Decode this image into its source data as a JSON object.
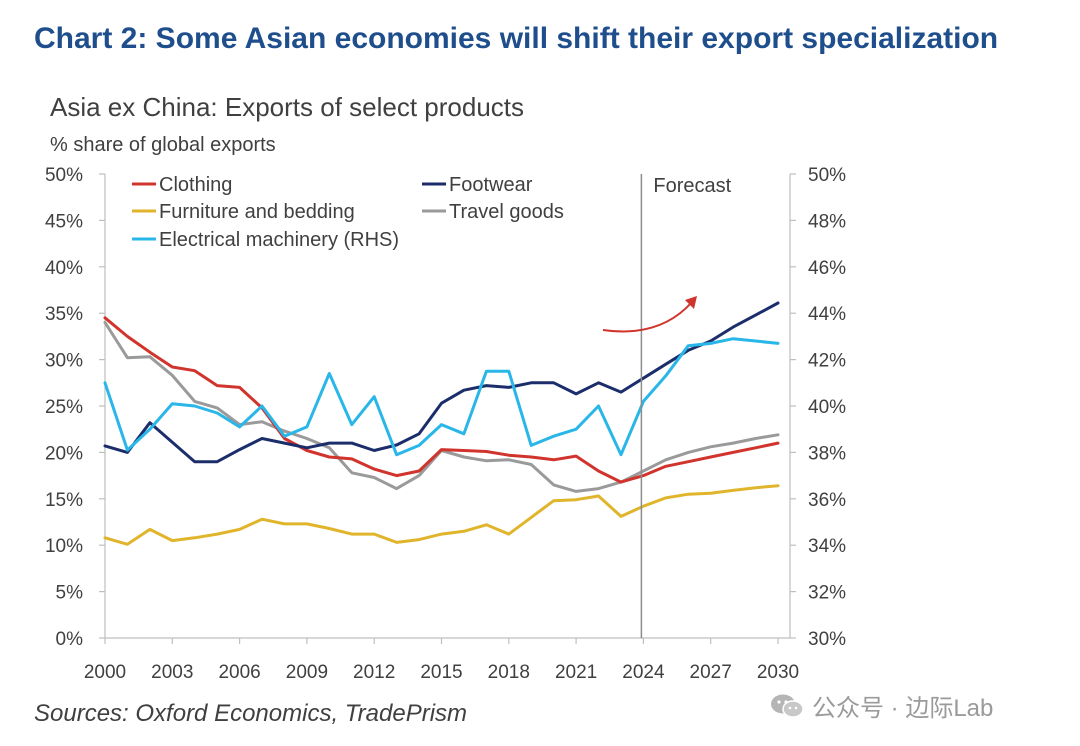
{
  "header": {
    "title": "Chart 2: Some Asian economies will shift their export specialization"
  },
  "footer": {
    "source": "Sources: Oxford Economics, TradePrism"
  },
  "watermark": {
    "text": "公众号 · 边际Lab"
  },
  "chart_data": {
    "type": "line",
    "title": "Asia ex China: Exports of select products",
    "ylabel": "% share of global exports",
    "annotation": "Forecast",
    "forecast_start": 2024,
    "x": [
      2000,
      2001,
      2002,
      2003,
      2004,
      2005,
      2006,
      2007,
      2008,
      2009,
      2010,
      2011,
      2012,
      2013,
      2014,
      2015,
      2016,
      2017,
      2018,
      2019,
      2020,
      2021,
      2022,
      2023,
      2024,
      2025,
      2026,
      2027,
      2028,
      2029,
      2030
    ],
    "xticks": [
      "2000",
      "2003",
      "2006",
      "2009",
      "2012",
      "2015",
      "2018",
      "2021",
      "2024",
      "2027",
      "2030"
    ],
    "xlim": [
      2000,
      2030
    ],
    "ylim": [
      0,
      50
    ],
    "yticks": [
      "0%",
      "5%",
      "10%",
      "15%",
      "20%",
      "25%",
      "30%",
      "35%",
      "40%",
      "45%",
      "50%"
    ],
    "y2lim": [
      30,
      50
    ],
    "y2ticks": [
      "30%",
      "32%",
      "34%",
      "36%",
      "38%",
      "40%",
      "42%",
      "44%",
      "46%",
      "48%",
      "50%"
    ],
    "legend_position": "top-left",
    "grid": false,
    "series": [
      {
        "name": "Clothing",
        "color": "#d0342c",
        "axis": "left",
        "values": [
          34.5,
          32.5,
          30.8,
          29.2,
          28.8,
          27.2,
          27.0,
          24.8,
          21.5,
          20.2,
          19.5,
          19.3,
          18.2,
          17.5,
          18.0,
          20.3,
          20.2,
          20.1,
          19.7,
          19.5,
          19.2,
          19.6,
          18.0,
          16.8,
          17.5,
          18.5,
          19.0,
          19.5,
          20.0,
          20.5,
          21.0
        ]
      },
      {
        "name": "Footwear",
        "color": "#1b2e6b",
        "axis": "left",
        "values": [
          20.7,
          20.0,
          23.2,
          21.1,
          19.0,
          19.0,
          20.3,
          21.5,
          21.0,
          20.5,
          21.0,
          21.0,
          20.2,
          20.8,
          22.0,
          25.3,
          26.7,
          27.2,
          27.0,
          27.5,
          27.5,
          26.3,
          27.5,
          26.5,
          28.0,
          29.5,
          31.0,
          32.0,
          33.5,
          34.8,
          36.1
        ]
      },
      {
        "name": "Furniture and bedding",
        "color": "#e0b52c",
        "axis": "left",
        "values": [
          10.8,
          10.1,
          11.7,
          10.5,
          10.8,
          11.2,
          11.7,
          12.8,
          12.3,
          12.3,
          11.8,
          11.2,
          11.2,
          10.3,
          10.6,
          11.2,
          11.5,
          12.2,
          11.2,
          13.0,
          14.8,
          14.9,
          15.3,
          13.1,
          14.2,
          15.1,
          15.5,
          15.6,
          15.9,
          16.2,
          16.4
        ]
      },
      {
        "name": "Travel goods",
        "color": "#9a9a9a",
        "axis": "left",
        "values": [
          34.0,
          30.2,
          30.3,
          28.3,
          25.5,
          24.8,
          23.0,
          23.3,
          22.3,
          21.5,
          20.5,
          17.8,
          17.3,
          16.1,
          17.5,
          20.2,
          19.5,
          19.1,
          19.2,
          18.7,
          16.5,
          15.8,
          16.1,
          16.8,
          18.0,
          19.2,
          20.0,
          20.6,
          21.0,
          21.5,
          21.9
        ]
      },
      {
        "name": "Electrical machinery (RHS)",
        "color": "#29b6e8",
        "axis": "right",
        "values": [
          41.0,
          38.1,
          39.0,
          40.1,
          40.0,
          39.7,
          39.1,
          40.0,
          38.7,
          39.1,
          41.4,
          39.2,
          40.4,
          37.9,
          38.3,
          39.2,
          38.8,
          41.5,
          41.5,
          38.3,
          38.7,
          39.0,
          40.0,
          37.9,
          40.2,
          41.3,
          42.6,
          42.7,
          42.9,
          42.8,
          42.7
        ]
      }
    ]
  }
}
